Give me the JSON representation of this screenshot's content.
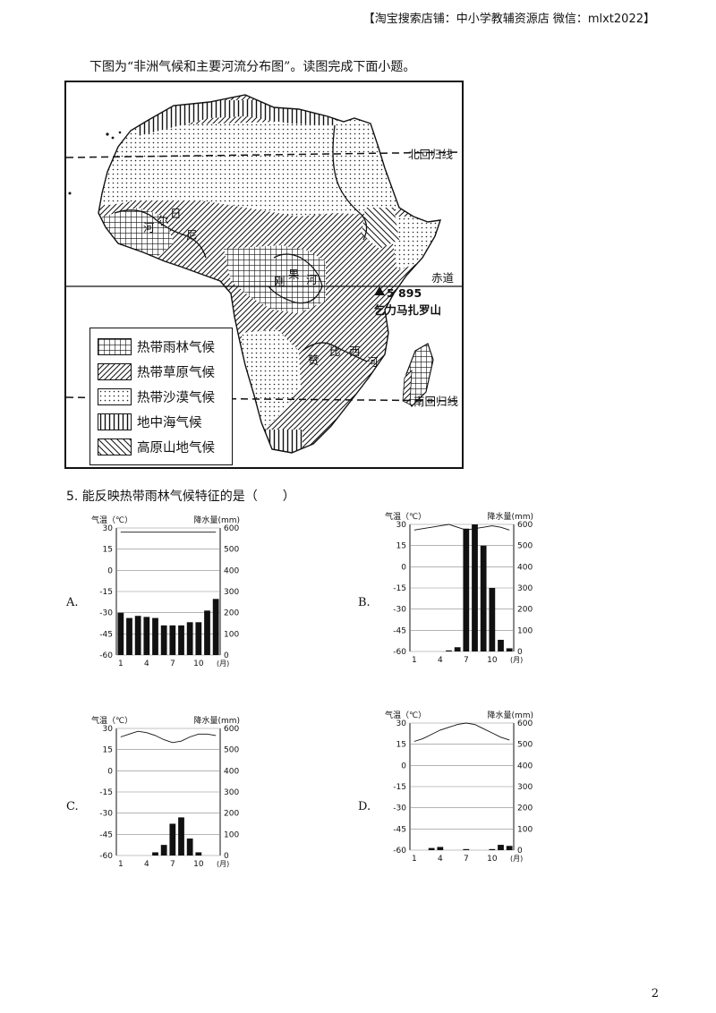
{
  "header": "【淘宝搜索店铺：中小学教辅资源店  微信：mlxt2022】",
  "intro": "下图为“非洲气候和主要河流分布图”。读图完成下面小题。",
  "map": {
    "labels": {
      "tropic_cancer": "北回归线",
      "equator": "赤道",
      "tropic_capricorn": "南回归线",
      "peak_height": "5 895",
      "peak_name": "乞力马扎罗山",
      "niger_1": "河",
      "niger_2": "尔",
      "niger_3": "日",
      "niger_4": "尼",
      "congo_1": "刚",
      "congo_2": "果",
      "congo_3": "河",
      "zambezi_1": "赞",
      "zambezi_2": "比",
      "zambezi_3": "西",
      "zambezi_4": "河"
    },
    "legend": [
      {
        "label": "热带雨林气候",
        "pattern": "grid"
      },
      {
        "label": "热带草原气候",
        "pattern": "diag"
      },
      {
        "label": "热带沙漠气候",
        "pattern": "dots"
      },
      {
        "label": "地中海气候",
        "pattern": "vert"
      },
      {
        "label": "高原山地气候",
        "pattern": "diag2"
      }
    ]
  },
  "question": "5. 能反映热带雨林气候特征的是（　　）",
  "options": [
    {
      "letter": "A."
    },
    {
      "letter": "B."
    },
    {
      "letter": "C."
    },
    {
      "letter": "D."
    }
  ],
  "axis_text": {
    "temp_label": "气温（℃）",
    "precip_label": "降水量(mm)",
    "month_unit": "(月)",
    "x_ticks": [
      "1",
      "4",
      "7",
      "10"
    ]
  },
  "chart_data": [
    {
      "type": "bar",
      "option": "A",
      "x": [
        1,
        2,
        3,
        4,
        5,
        6,
        7,
        8,
        9,
        10,
        11,
        12
      ],
      "temperature": [
        27,
        27,
        27,
        27,
        27,
        27,
        27,
        27,
        27,
        27,
        27,
        27
      ],
      "precipitation": [
        200,
        175,
        185,
        180,
        175,
        140,
        140,
        140,
        155,
        155,
        210,
        265
      ],
      "y_left": {
        "range": [
          -60,
          30
        ],
        "ticks": [
          30,
          15,
          0,
          -15,
          -30,
          -45,
          -60
        ]
      },
      "y_right": {
        "range": [
          0,
          600
        ],
        "ticks": [
          600,
          500,
          400,
          300,
          200,
          100,
          0
        ]
      }
    },
    {
      "type": "bar",
      "option": "B",
      "x": [
        1,
        2,
        3,
        4,
        5,
        6,
        7,
        8,
        9,
        10,
        11,
        12
      ],
      "temperature": [
        26,
        27,
        28,
        29,
        30,
        28,
        26,
        27,
        28,
        29,
        28,
        26
      ],
      "precipitation": [
        0,
        0,
        0,
        0,
        5,
        20,
        580,
        600,
        500,
        300,
        55,
        15
      ],
      "y_left": {
        "range": [
          -60,
          30
        ],
        "ticks": [
          30,
          15,
          0,
          -15,
          -30,
          -45,
          -60
        ]
      },
      "y_right": {
        "range": [
          0,
          600
        ],
        "ticks": [
          600,
          500,
          400,
          300,
          200,
          100,
          0
        ]
      }
    },
    {
      "type": "bar",
      "option": "C",
      "x": [
        1,
        2,
        3,
        4,
        5,
        6,
        7,
        8,
        9,
        10,
        11,
        12
      ],
      "temperature": [
        24,
        26,
        28,
        27,
        25,
        22,
        20,
        21,
        24,
        26,
        26,
        25
      ],
      "precipitation": [
        0,
        0,
        0,
        0,
        15,
        50,
        150,
        180,
        80,
        15,
        0,
        0
      ],
      "y_left": {
        "range": [
          -60,
          30
        ],
        "ticks": [
          30,
          15,
          0,
          -15,
          -30,
          -45,
          -60
        ]
      },
      "y_right": {
        "range": [
          0,
          600
        ],
        "ticks": [
          600,
          500,
          400,
          300,
          200,
          100,
          0
        ]
      }
    },
    {
      "type": "bar",
      "option": "D",
      "x": [
        1,
        2,
        3,
        4,
        5,
        6,
        7,
        8,
        9,
        10,
        11,
        12
      ],
      "temperature": [
        17,
        19,
        22,
        25,
        27,
        29,
        30,
        29,
        26,
        23,
        20,
        18
      ],
      "precipitation": [
        0,
        0,
        10,
        15,
        0,
        0,
        5,
        0,
        0,
        5,
        25,
        20
      ],
      "y_left": {
        "range": [
          -60,
          30
        ],
        "ticks": [
          30,
          15,
          0,
          -15,
          -30,
          -45,
          -60
        ]
      },
      "y_right": {
        "range": [
          0,
          600
        ],
        "ticks": [
          600,
          500,
          400,
          300,
          200,
          100,
          0
        ]
      }
    }
  ],
  "page_number": "2"
}
